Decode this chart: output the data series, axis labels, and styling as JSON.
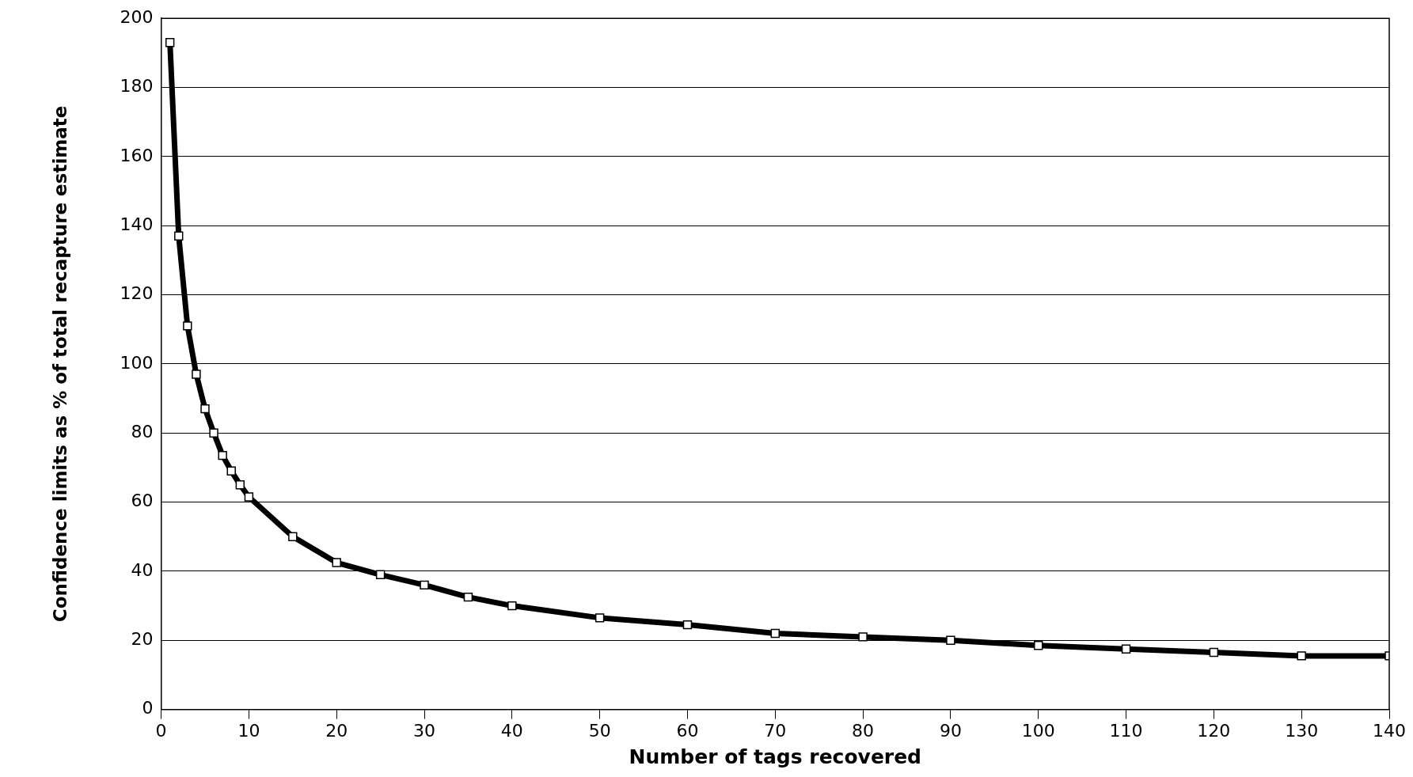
{
  "chart_data": {
    "type": "line",
    "xlabel": "Number of tags recovered",
    "ylabel": "Confidence limits as % of total recapture estimate",
    "x": [
      1,
      2,
      3,
      4,
      5,
      6,
      7,
      8,
      9,
      10,
      15,
      20,
      25,
      30,
      35,
      40,
      50,
      60,
      70,
      80,
      90,
      100,
      110,
      120,
      130,
      140
    ],
    "series": [
      {
        "color": "#000000",
        "values": [
          193,
          137,
          111,
          97,
          87,
          80,
          73.5,
          69,
          65,
          61.5,
          50,
          42.5,
          39,
          36,
          32.5,
          30,
          26.5,
          24.5,
          22,
          21,
          20,
          18.5,
          17.5,
          16.5,
          15.5,
          15.5
        ]
      }
    ],
    "xlim": [
      0,
      140
    ],
    "xticks": [
      0,
      10,
      20,
      30,
      40,
      50,
      60,
      70,
      80,
      90,
      100,
      110,
      120,
      130,
      140
    ],
    "ylim": [
      0,
      200
    ],
    "yticks": [
      0,
      20,
      40,
      60,
      80,
      100,
      120,
      140,
      160,
      180,
      200
    ],
    "grid": "y",
    "legend": false,
    "marker": "square",
    "line_style": "solid"
  }
}
